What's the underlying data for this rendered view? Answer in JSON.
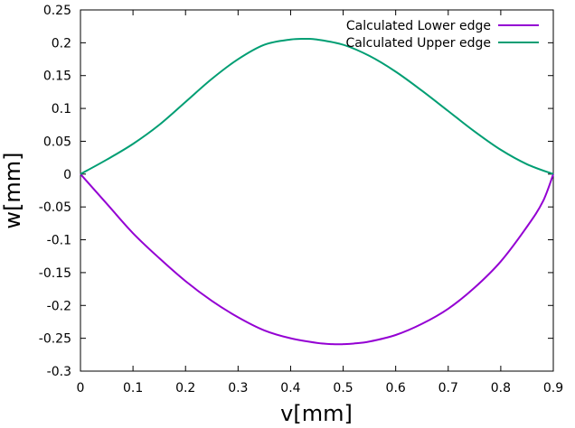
{
  "chart_data": {
    "type": "line",
    "title": "",
    "xlabel": "v[mm]",
    "ylabel": "w[mm]",
    "xlim": [
      0,
      0.9
    ],
    "ylim": [
      -0.3,
      0.25
    ],
    "xticks": [
      0,
      0.1,
      0.2,
      0.3,
      0.4,
      0.5,
      0.6,
      0.7,
      0.8,
      0.9
    ],
    "xtick_labels": [
      "0",
      "0.1",
      "0.2",
      "0.3",
      "0.4",
      "0.5",
      "0.6",
      "0.7",
      "0.8",
      "0.9"
    ],
    "yticks": [
      -0.3,
      -0.25,
      -0.2,
      -0.15,
      -0.1,
      -0.05,
      0,
      0.05,
      0.1,
      0.15,
      0.2,
      0.25
    ],
    "ytick_labels": [
      "-0.3",
      "-0.25",
      "-0.2",
      "-0.15",
      "-0.1",
      "-0.05",
      "0",
      "0.05",
      "0.1",
      "0.15",
      "0.2",
      "0.25"
    ],
    "grid": false,
    "legend_position": "top-right",
    "series": [
      {
        "name": "Calculated Lower edge",
        "color": "#9400d3",
        "x": [
          0,
          0.05,
          0.1,
          0.15,
          0.2,
          0.25,
          0.3,
          0.35,
          0.4,
          0.45,
          0.48,
          0.5,
          0.52,
          0.55,
          0.6,
          0.65,
          0.7,
          0.75,
          0.8,
          0.85,
          0.88,
          0.9
        ],
        "y": [
          0,
          -0.045,
          -0.09,
          -0.128,
          -0.163,
          -0.193,
          -0.218,
          -0.238,
          -0.25,
          -0.257,
          -0.259,
          -0.259,
          -0.258,
          -0.255,
          -0.245,
          -0.228,
          -0.205,
          -0.173,
          -0.133,
          -0.08,
          -0.042,
          0
        ]
      },
      {
        "name": "Calculated Upper edge",
        "color": "#009e73",
        "x": [
          0,
          0.05,
          0.1,
          0.15,
          0.2,
          0.25,
          0.3,
          0.35,
          0.4,
          0.43,
          0.45,
          0.5,
          0.55,
          0.6,
          0.65,
          0.7,
          0.75,
          0.8,
          0.85,
          0.9
        ],
        "y": [
          0,
          0.022,
          0.046,
          0.075,
          0.11,
          0.145,
          0.175,
          0.197,
          0.205,
          0.206,
          0.205,
          0.197,
          0.18,
          0.156,
          0.127,
          0.096,
          0.065,
          0.037,
          0.015,
          0
        ]
      }
    ]
  }
}
